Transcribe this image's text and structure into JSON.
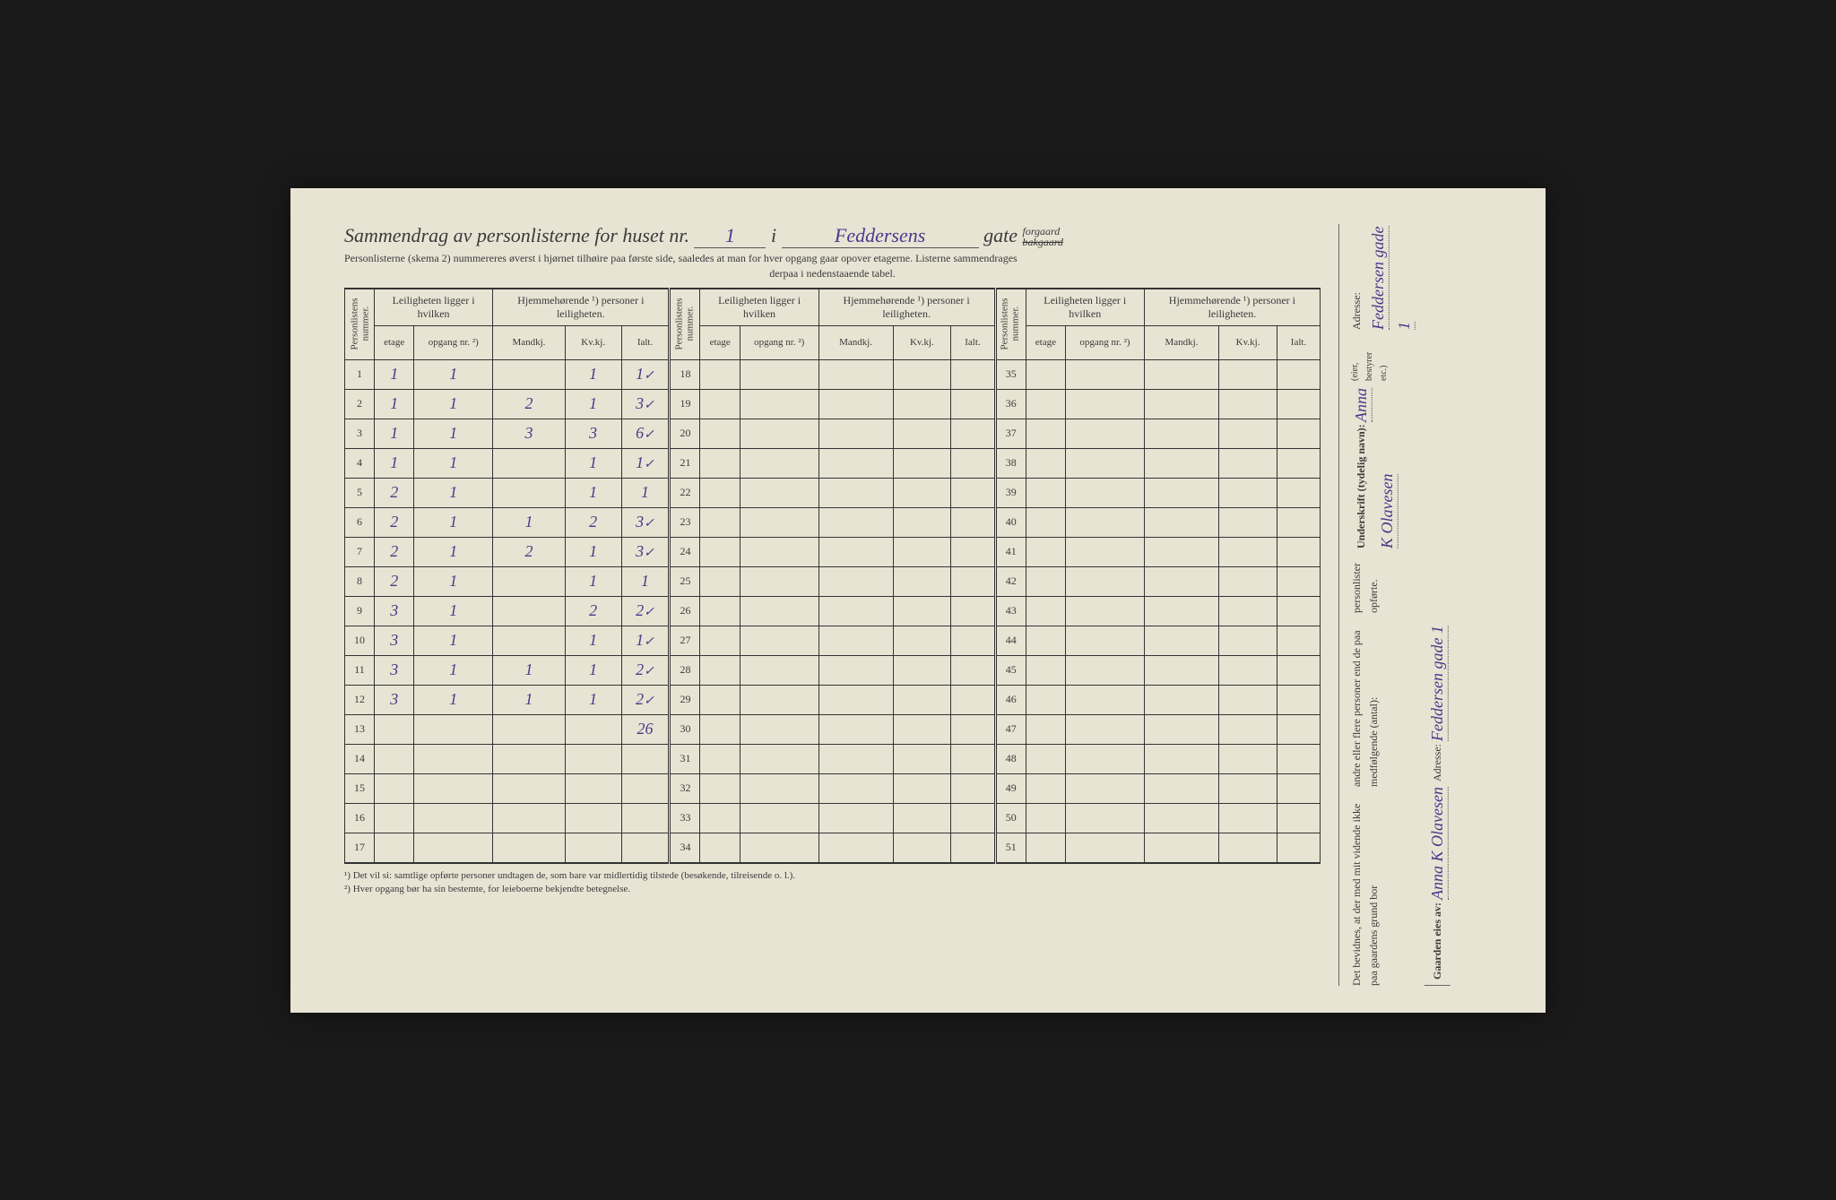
{
  "title": {
    "prefix": "Sammendrag av personlisterne for huset nr.",
    "house_nr": "1",
    "conj": "i",
    "street": "Feddersens",
    "gate_label": "gate",
    "forgaard": "forgaard",
    "bakgaard": "bakgaard"
  },
  "subtitle1": "Personlisterne (skema 2) nummereres øverst i hjørnet tilhøire paa første side, saaledes at man for hver opgang gaar opover etagerne.  Listerne sammendrages",
  "subtitle2": "derpaa i nedenstaaende tabel.",
  "headers": {
    "personlistens": "Personlistens nummer.",
    "leiligheten": "Leiligheten ligger i hvilken",
    "hjemme": "Hjemmehørende ¹) personer i leiligheten.",
    "etage": "etage",
    "opgang": "opgang nr. ²)",
    "mandkj": "Mandkj.",
    "kvkj": "Kv.kj.",
    "ialt": "Ialt."
  },
  "rows1": [
    {
      "n": "1",
      "etage": "1",
      "opg": "1",
      "m": "",
      "k": "1",
      "i": "1",
      "chk": "✓"
    },
    {
      "n": "2",
      "etage": "1",
      "opg": "1",
      "m": "2",
      "k": "1",
      "i": "3",
      "chk": "✓"
    },
    {
      "n": "3",
      "etage": "1",
      "opg": "1",
      "m": "3",
      "k": "3",
      "i": "6",
      "chk": "✓"
    },
    {
      "n": "4",
      "etage": "1",
      "opg": "1",
      "m": "",
      "k": "1",
      "i": "1",
      "chk": "✓"
    },
    {
      "n": "5",
      "etage": "2",
      "opg": "1",
      "m": "",
      "k": "1",
      "i": "1",
      "chk": ""
    },
    {
      "n": "6",
      "etage": "2",
      "opg": "1",
      "m": "1",
      "k": "2",
      "i": "3",
      "chk": "✓"
    },
    {
      "n": "7",
      "etage": "2",
      "opg": "1",
      "m": "2",
      "k": "1",
      "i": "3",
      "chk": "✓"
    },
    {
      "n": "8",
      "etage": "2",
      "opg": "1",
      "m": "",
      "k": "1",
      "i": "1",
      "chk": ""
    },
    {
      "n": "9",
      "etage": "3",
      "opg": "1",
      "m": "",
      "k": "2",
      "i": "2",
      "chk": "✓"
    },
    {
      "n": "10",
      "etage": "3",
      "opg": "1",
      "m": "",
      "k": "1",
      "i": "1",
      "chk": "✓"
    },
    {
      "n": "11",
      "etage": "3",
      "opg": "1",
      "m": "1",
      "k": "1",
      "i": "2",
      "chk": "✓"
    },
    {
      "n": "12",
      "etage": "3",
      "opg": "1",
      "m": "1",
      "k": "1",
      "i": "2",
      "chk": "✓"
    },
    {
      "n": "13",
      "etage": "",
      "opg": "",
      "m": "",
      "k": "",
      "i": "26",
      "chk": ""
    },
    {
      "n": "14",
      "etage": "",
      "opg": "",
      "m": "",
      "k": "",
      "i": "",
      "chk": ""
    },
    {
      "n": "15",
      "etage": "",
      "opg": "",
      "m": "",
      "k": "",
      "i": "",
      "chk": ""
    },
    {
      "n": "16",
      "etage": "",
      "opg": "",
      "m": "",
      "k": "",
      "i": "",
      "chk": ""
    },
    {
      "n": "17",
      "etage": "",
      "opg": "",
      "m": "",
      "k": "",
      "i": "",
      "chk": ""
    }
  ],
  "rows2_start": 18,
  "rows2_end": 34,
  "rows3_start": 35,
  "rows3_end": 51,
  "footnotes": {
    "f1": "¹) Det vil si: samtlige opførte personer undtagen de, som bare var midlertidig tilstede (besøkende, tilreisende o. l.).",
    "f2": "²) Hver opgang bør ha sin bestemte, for leieboerne bekjendte betegnelse."
  },
  "right": {
    "bevidnes1": "Det bevidnes, at der med mit vidende ikke paa gaardens grund bor",
    "bevidnes2": "andre eller flere personer end de paa medfølgende (antal):",
    "bevidnes3": "personlister opførte.",
    "underskrift_label": "Underskrift (tydelig navn):",
    "underskrift_value": "Anna K Olavesen",
    "eier_note": "(eier, bestyrer etc.)",
    "adresse_label": "Adresse:",
    "adresse_value": "Feddersen gade 1",
    "gaarden_label": "Gaarden eies av:",
    "gaarden_value": "Anna K Olavesen",
    "adresse2_label": "Adresse:",
    "adresse2_value": "Feddersen gade 1"
  }
}
